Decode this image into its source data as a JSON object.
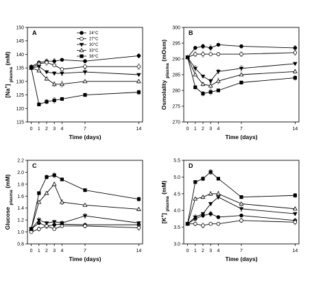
{
  "chart_data": [
    {
      "type": "line",
      "panel_label": "A",
      "ylabel": "[Na⁺] plasma (mM)",
      "ylabel_parts": [
        "[Na",
        "+",
        "] ",
        "plasma",
        " (mM)"
      ],
      "xlabel": "Time (days)",
      "x": [
        0,
        1,
        2,
        3,
        4,
        7,
        14
      ],
      "xticks": [
        "0",
        "1",
        "2",
        "3",
        "4",
        "7",
        "14"
      ],
      "ylim": [
        115,
        150
      ],
      "yticks": [
        115,
        120,
        125,
        130,
        135,
        140,
        145,
        150
      ],
      "legend": "top-left",
      "series": [
        {
          "name": "24°C",
          "values": [
            135.5,
            137,
            137.5,
            137.5,
            138,
            137.5,
            139.5
          ]
        },
        {
          "name": "27°C",
          "values": [
            135,
            136.5,
            137,
            136,
            134.5,
            135.5,
            135.5
          ]
        },
        {
          "name": "30°C",
          "values": [
            135,
            135.5,
            133.5,
            133,
            133,
            133.5,
            132.5
          ]
        },
        {
          "name": "33°C",
          "values": [
            135,
            134,
            131,
            129,
            129,
            130,
            130
          ]
        },
        {
          "name": "36°C",
          "values": [
            135,
            121.5,
            122.5,
            123,
            123.5,
            125,
            126
          ]
        }
      ]
    },
    {
      "type": "line",
      "panel_label": "B",
      "ylabel": "Osmolality plasma (mOsm)",
      "ylabel_parts": [
        "Osmolality",
        "",
        " ",
        "plasma",
        " (mOsm)"
      ],
      "xlabel": "Time (days)",
      "x": [
        0,
        1,
        2,
        3,
        4,
        7,
        14
      ],
      "xticks": [
        "0",
        "1",
        "2",
        "3",
        "4",
        "7",
        "14"
      ],
      "ylim": [
        270,
        300
      ],
      "yticks": [
        270,
        275,
        280,
        285,
        290,
        295,
        300
      ],
      "series": [
        {
          "name": "24°C",
          "values": [
            290.5,
            293.5,
            294,
            293.5,
            294.5,
            294,
            293.5
          ]
        },
        {
          "name": "27°C",
          "values": [
            290.5,
            291.5,
            291.5,
            291.5,
            291.5,
            291.5,
            292
          ]
        },
        {
          "name": "30°C",
          "values": [
            290.5,
            287,
            284.5,
            283,
            286,
            287,
            288.5
          ]
        },
        {
          "name": "33°C",
          "values": [
            290.5,
            285,
            282,
            281.5,
            283,
            285,
            286
          ]
        },
        {
          "name": "36°C",
          "values": [
            290.5,
            281,
            279,
            279.5,
            280,
            282.5,
            284
          ]
        }
      ]
    },
    {
      "type": "line",
      "panel_label": "C",
      "ylabel": "Glucose plasma (mM)",
      "ylabel_parts": [
        "Glucose",
        "",
        " ",
        "plasma",
        " (mM)"
      ],
      "xlabel": "Time (days)",
      "x": [
        0,
        1,
        2,
        3,
        4,
        7,
        14
      ],
      "xticks": [
        "0",
        "1",
        "2",
        "3",
        "4",
        "7",
        "14"
      ],
      "ylim": [
        0.8,
        2.2
      ],
      "yticks": [
        0.8,
        1.0,
        1.2,
        1.4,
        1.6,
        1.8,
        2.0,
        2.2
      ],
      "ytick_labels": [
        "0.8",
        "1.0",
        "1.2",
        "1.4",
        "1.6",
        "1.8",
        "2.0",
        "2.2"
      ],
      "series": [
        {
          "name": "24°C",
          "values": [
            1.05,
            1.15,
            1.1,
            1.12,
            1.13,
            1.12,
            1.12
          ]
        },
        {
          "name": "27°C",
          "values": [
            1.0,
            1.05,
            1.1,
            1.05,
            1.1,
            1.1,
            1.07
          ]
        },
        {
          "name": "30°C",
          "values": [
            1.05,
            1.2,
            1.15,
            1.17,
            1.15,
            1.27,
            1.15
          ]
        },
        {
          "name": "33°C",
          "values": [
            1.05,
            1.5,
            1.65,
            1.8,
            1.5,
            1.45,
            1.38
          ]
        },
        {
          "name": "36°C",
          "values": [
            1.05,
            1.65,
            1.92,
            1.95,
            1.88,
            1.7,
            1.55
          ]
        }
      ]
    },
    {
      "type": "line",
      "panel_label": "D",
      "ylabel": "[K⁺] plasma (mM)",
      "ylabel_parts": [
        "[K",
        "+",
        "] ",
        "plasma",
        " (mM)"
      ],
      "xlabel": "Time (days)",
      "x": [
        0,
        1,
        2,
        3,
        4,
        7,
        14
      ],
      "xticks": [
        "0",
        "1",
        "2",
        "3",
        "4",
        "7",
        "14"
      ],
      "ylim": [
        3.0,
        5.5
      ],
      "yticks": [
        3.0,
        3.5,
        4.0,
        4.5,
        5.0,
        5.5
      ],
      "ytick_labels": [
        "3.0",
        "3.5",
        "4.0",
        "4.5",
        "5.0",
        "5.5"
      ],
      "series": [
        {
          "name": "24°C",
          "values": [
            3.6,
            3.75,
            3.85,
            3.9,
            3.8,
            3.85,
            3.7
          ]
        },
        {
          "name": "27°C",
          "values": [
            3.6,
            3.6,
            3.55,
            3.6,
            3.6,
            3.7,
            3.65
          ]
        },
        {
          "name": "30°C",
          "values": [
            3.6,
            3.8,
            3.9,
            4.2,
            4.4,
            4.05,
            3.9
          ]
        },
        {
          "name": "33°C",
          "values": [
            3.6,
            4.35,
            4.4,
            4.5,
            4.5,
            4.2,
            4.05
          ]
        },
        {
          "name": "36°C",
          "values": [
            3.6,
            4.85,
            4.95,
            5.15,
            4.95,
            4.4,
            4.45
          ]
        }
      ]
    }
  ]
}
